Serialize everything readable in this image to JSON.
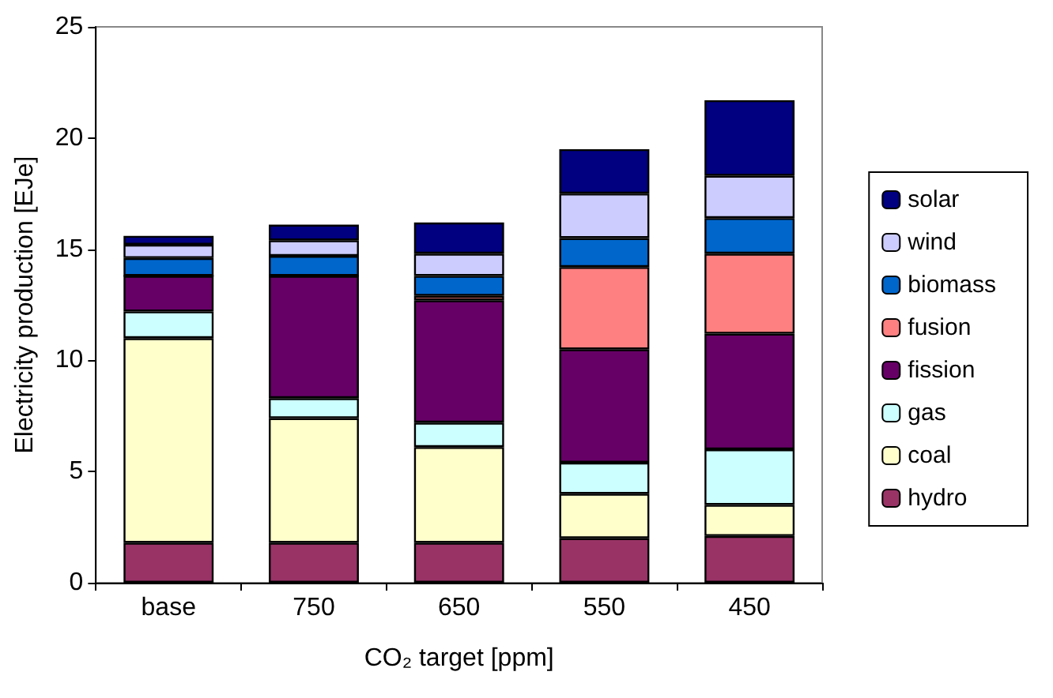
{
  "chart_data": {
    "type": "bar",
    "stacked": true,
    "xlabel": "CO₂ target [ppm]",
    "ylabel": "Electricity production [EJe]",
    "categories": [
      "base",
      "750",
      "650",
      "550",
      "450"
    ],
    "series": [
      {
        "name": "hydro",
        "color": "#993366",
        "values": [
          1.8,
          1.8,
          1.8,
          2.0,
          2.1
        ]
      },
      {
        "name": "coal",
        "color": "#ffffcc",
        "values": [
          9.2,
          5.6,
          4.3,
          2.0,
          1.4
        ]
      },
      {
        "name": "gas",
        "color": "#ccffff",
        "values": [
          1.2,
          0.9,
          1.1,
          1.4,
          2.5
        ]
      },
      {
        "name": "fission",
        "color": "#660066",
        "values": [
          1.6,
          5.5,
          5.5,
          5.1,
          5.2
        ]
      },
      {
        "name": "fusion",
        "color": "#ff8080",
        "values": [
          0,
          0,
          0.2,
          3.7,
          3.6
        ]
      },
      {
        "name": "biomass",
        "color": "#0066cc",
        "values": [
          0.8,
          0.9,
          0.9,
          1.3,
          1.6
        ]
      },
      {
        "name": "wind",
        "color": "#ccccff",
        "values": [
          0.6,
          0.7,
          1.0,
          2.0,
          1.9
        ]
      },
      {
        "name": "solar",
        "color": "#000080",
        "values": [
          0.4,
          0.7,
          1.4,
          2.0,
          3.4
        ]
      }
    ],
    "ylim": [
      0,
      25
    ],
    "yticks": [
      0,
      5,
      10,
      15,
      20,
      25
    ],
    "grid": false,
    "legend": "right"
  }
}
